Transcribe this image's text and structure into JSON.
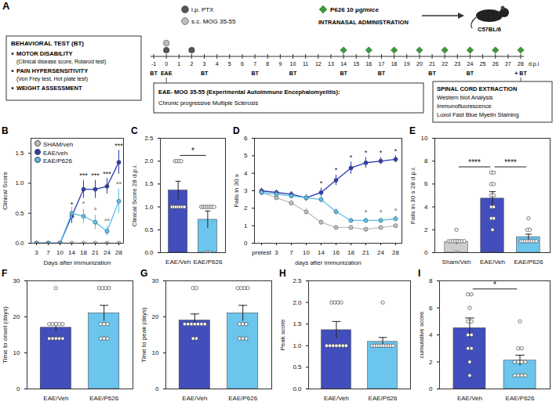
{
  "diagram": {
    "panel": "A",
    "behavioral_box": {
      "title": "BEHAVIORAL TEST (BT)",
      "items": [
        {
          "head": "MOTOR DISABILITY",
          "detail": "(Clinical disease score, Rotarod test)"
        },
        {
          "head": "PAIN HYPERSENSITIVITY",
          "detail": "(Von Frey test, Hot plate test)"
        },
        {
          "head": "WEIGHT ASSESSMENT"
        }
      ]
    },
    "injections": [
      {
        "label": "i.p. PTX",
        "days": [
          0,
          2
        ]
      },
      {
        "label": "s.c. MOG 35-55",
        "days": [
          0
        ]
      }
    ],
    "treatment": {
      "label": "P626 10 µg/mice",
      "route": "INTRANASAL ADMINISTRATION",
      "strain": "C57BL/6",
      "days": [
        14,
        16,
        18,
        20,
        22,
        24,
        26,
        28
      ]
    },
    "timeline": {
      "days": [
        -1,
        0,
        1,
        2,
        3,
        4,
        5,
        6,
        7,
        8,
        9,
        10,
        11,
        12,
        13,
        14,
        15,
        16,
        17,
        18,
        19,
        20,
        21,
        22,
        23,
        24,
        25,
        26,
        27,
        28
      ],
      "unit": "d.p.i",
      "induction_label": "EAE",
      "induction_day": 0,
      "test_label": "BT",
      "test_days": [
        -1,
        3,
        7,
        10,
        14,
        17,
        21,
        24
      ],
      "end_label": "+ BT",
      "end_day": 28
    },
    "model_box": {
      "lines": [
        "EAE- MOG 35-55 (Experimental Autoimmune Encephalomyelitis):",
        "Chronic progressive Multiple Sclerosis"
      ]
    },
    "outcome_box": {
      "title": "SPINAL CORD EXTRACTION",
      "items": [
        "Western blot Analysis",
        "Immunofluorescence",
        "Luxol Fast Blue Myelin Staining"
      ]
    }
  },
  "chart_data": [
    {
      "panel": "B",
      "type": "line",
      "y_label": "Clinical Score",
      "x_label": "Days after immunization",
      "categories": [
        3,
        7,
        10,
        14,
        18,
        21,
        24,
        28
      ],
      "series": [
        {
          "name": "SHAM/veh",
          "color": "#c0c0c0",
          "marker": "circle",
          "values": [
            0,
            0,
            0,
            0,
            0,
            0,
            0,
            0
          ],
          "errors": [
            0,
            0,
            0,
            0,
            0,
            0,
            0,
            0
          ]
        },
        {
          "name": "EAE/veh",
          "color": "#2d3bb5",
          "marker": "circle",
          "values": [
            0,
            0,
            0,
            0.45,
            0.9,
            0.9,
            0.95,
            1.35
          ],
          "errors": [
            0,
            0,
            0,
            0.12,
            0.15,
            0.15,
            0.13,
            0.2
          ]
        },
        {
          "name": "EAE/P626",
          "color": "#5bbfea",
          "marker": "circle",
          "values": [
            0,
            0,
            0,
            0.5,
            0.45,
            0.35,
            0.2,
            0.7
          ],
          "errors": [
            0,
            0,
            0,
            0.1,
            0.12,
            0.12,
            0.08,
            0.2
          ]
        }
      ],
      "annotations": [
        {
          "x": 14,
          "series": 1,
          "text": "*"
        },
        {
          "x": 18,
          "series": 1,
          "text": "***"
        },
        {
          "x": 21,
          "series": 1,
          "text": "***"
        },
        {
          "x": 24,
          "series": 1,
          "text": "***"
        },
        {
          "x": 28,
          "series": 1,
          "text": "***"
        },
        {
          "x": 18,
          "series": 2,
          "text": "°"
        },
        {
          "x": 21,
          "series": 2,
          "text": "°"
        },
        {
          "x": 24,
          "series": 2,
          "text": "°°"
        },
        {
          "x": 28,
          "series": 2,
          "text": "°°"
        }
      ],
      "ylim": [
        0,
        1.75
      ],
      "yticks": [
        {
          "value": 0,
          "label": "0.0"
        },
        0.5,
        {
          "value": 1,
          "label": "1.0"
        },
        1.5
      ],
      "legend": "top-left"
    },
    {
      "panel": "C",
      "type": "bar",
      "y_label": "Clinical Score 28 d.p.i.",
      "categories": [
        "EAE/Veh",
        "EAE/P626"
      ],
      "values": [
        1.36,
        0.72
      ],
      "errors": [
        0.2,
        0.19
      ],
      "points": [
        [
          2,
          2,
          2,
          2,
          1,
          1,
          1,
          1,
          1,
          1,
          1
        ],
        [
          1,
          1,
          1,
          1,
          1,
          1,
          1,
          1,
          0,
          0,
          0
        ]
      ],
      "colors": [
        "#2d3bb5",
        "#5bbfea"
      ],
      "annotations": [
        {
          "from": "EAE/Veh",
          "to": "EAE/P626",
          "text": "*"
        }
      ],
      "ylim": [
        0,
        2.5
      ],
      "yticks": [
        {
          "value": 0,
          "label": "0.0"
        },
        0.5,
        {
          "value": 1,
          "label": "1.0"
        },
        1.5,
        {
          "value": 2,
          "label": "2.0"
        },
        2.5
      ]
    },
    {
      "panel": "D",
      "type": "line",
      "y_label": "Falls in 30 s",
      "x_label": "days after immunization",
      "categories": [
        "pretest",
        3,
        7,
        10,
        14,
        16,
        18,
        21,
        24,
        28
      ],
      "series": [
        {
          "color": "#c0c0c0",
          "marker": "circle",
          "values": [
            2.9,
            2.6,
            2.3,
            1.8,
            1.2,
            0.9,
            0.9,
            0.8,
            0.9,
            1.0
          ],
          "errors": [
            0.15,
            0.15,
            0.15,
            0.2,
            0.15,
            0.1,
            0.1,
            0.1,
            0.1,
            0.1
          ]
        },
        {
          "color": "#2d3bb5",
          "marker": "circle",
          "values": [
            3.0,
            2.9,
            2.8,
            2.6,
            2.9,
            3.6,
            4.3,
            4.6,
            4.7,
            4.8
          ],
          "errors": [
            0.15,
            0.15,
            0.15,
            0.2,
            0.25,
            0.3,
            0.35,
            0.3,
            0.2,
            0.2
          ]
        },
        {
          "color": "#5bbfea",
          "marker": "circle",
          "values": [
            2.9,
            2.8,
            2.7,
            2.6,
            2.5,
            1.8,
            1.3,
            1.3,
            1.3,
            1.4
          ],
          "errors": [
            0.15,
            0.15,
            0.15,
            0.15,
            0.2,
            0.2,
            0.15,
            0.15,
            0.15,
            0.15
          ]
        }
      ],
      "annotations": [
        {
          "x": 14,
          "series": 1,
          "text": "*"
        },
        {
          "x": 16,
          "series": 1,
          "text": "*"
        },
        {
          "x": 18,
          "series": 1,
          "text": "*"
        },
        {
          "x": 21,
          "series": 1,
          "text": "*"
        },
        {
          "x": 24,
          "series": 1,
          "text": "*"
        },
        {
          "x": 28,
          "series": 1,
          "text": "*"
        },
        {
          "x": 21,
          "series": 2,
          "text": "°"
        },
        {
          "x": 24,
          "series": 2,
          "text": "°"
        },
        {
          "x": 28,
          "series": 2,
          "text": "°"
        }
      ],
      "ylim": [
        0,
        6
      ],
      "yticks": [
        0,
        1,
        2,
        3,
        4,
        5,
        6
      ]
    },
    {
      "panel": "E",
      "type": "bar",
      "y_label": "Falls in 30 s 28 d.p.i.",
      "categories": [
        "Sham/Veh",
        "EAE/Veh",
        "EAE/P626"
      ],
      "values": [
        0.91,
        4.73,
        1.36
      ],
      "errors": [
        0.2,
        0.6,
        0.25
      ],
      "points": [
        [
          0,
          0,
          1,
          1,
          1,
          1,
          1,
          1,
          1,
          1,
          2
        ],
        [
          2,
          3,
          3,
          4,
          4,
          5,
          5,
          6,
          6,
          7,
          7
        ],
        [
          1,
          1,
          1,
          1,
          1,
          1,
          1,
          1,
          2,
          2,
          3
        ]
      ],
      "colors": [
        "#c8c8c8",
        "#2d3bb5",
        "#5bbfea"
      ],
      "annotations": [
        {
          "from": "Sham/Veh",
          "to": "EAE/Veh",
          "text": "****"
        },
        {
          "from": "EAE/Veh",
          "to": "EAE/P626",
          "text": "****"
        }
      ],
      "ylim": [
        0,
        10
      ],
      "yticks": [
        0,
        2,
        4,
        6,
        8,
        10
      ]
    },
    {
      "panel": "F",
      "type": "bar",
      "y_label": "Time to onset (days)",
      "categories": [
        "EAE/Veh",
        "EAE/P626"
      ],
      "values": [
        17,
        21
      ],
      "errors": [
        1.2,
        2.2
      ],
      "points": [
        [
          14,
          14,
          14,
          14,
          14,
          18,
          18,
          18,
          18,
          18,
          28
        ],
        [
          14,
          14,
          14,
          18,
          18,
          18,
          28,
          28,
          28,
          28
        ]
      ],
      "colors": [
        "#2d3bb5",
        "#5bbfea"
      ],
      "ylim": [
        0,
        30
      ],
      "yticks": [
        0,
        10,
        20,
        30
      ]
    },
    {
      "panel": "G",
      "type": "bar",
      "y_label": "Time to peak (days)",
      "categories": [
        "EAE/Veh",
        "EAE/P626"
      ],
      "values": [
        19,
        21
      ],
      "errors": [
        1.8,
        2.2
      ],
      "points": [
        [
          14,
          14,
          18,
          18,
          18,
          18,
          18,
          18,
          18,
          28,
          28
        ],
        [
          14,
          14,
          14,
          18,
          18,
          18,
          28,
          28,
          28,
          28
        ]
      ],
      "colors": [
        "#2d3bb5",
        "#5bbfea"
      ],
      "ylim": [
        0,
        30
      ],
      "yticks": [
        0,
        10,
        20,
        30
      ]
    },
    {
      "panel": "H",
      "type": "bar",
      "y_label": "Peak score",
      "categories": [
        "EAE/Veh",
        "EAE/P626"
      ],
      "values": [
        1.36,
        1.09
      ],
      "errors": [
        0.2,
        0.1
      ],
      "points": [
        [
          2,
          2,
          2,
          2,
          1,
          1,
          1,
          1,
          1,
          1,
          1
        ],
        [
          2,
          1,
          1,
          1,
          1,
          1,
          1,
          1,
          1,
          1,
          1
        ]
      ],
      "colors": [
        "#2d3bb5",
        "#5bbfea"
      ],
      "ylim": [
        0,
        2.5
      ],
      "yticks": [
        {
          "value": 0,
          "label": "0.0"
        },
        0.5,
        {
          "value": 1,
          "label": "1.0"
        },
        1.5,
        {
          "value": 2,
          "label": "2.0"
        },
        2.5
      ]
    },
    {
      "panel": "I",
      "type": "bar",
      "y_label": "cumulative score",
      "categories": [
        "EAE/Veh",
        "EAE/P626"
      ],
      "values": [
        4.5,
        2.1
      ],
      "errors": [
        0.75,
        0.4
      ],
      "points": [
        [
          1,
          2,
          3,
          3,
          4,
          4,
          5,
          5,
          6,
          7,
          7
        ],
        [
          1,
          1,
          1,
          1,
          2,
          2,
          2,
          2,
          3,
          3,
          5
        ]
      ],
      "colors": [
        "#2d3bb5",
        "#5bbfea"
      ],
      "annotations": [
        {
          "from": "EAE/Veh",
          "to": "EAE/P626",
          "text": "*"
        }
      ],
      "ylim": [
        0,
        8
      ],
      "yticks": [
        0,
        2,
        4,
        6,
        8
      ]
    }
  ]
}
